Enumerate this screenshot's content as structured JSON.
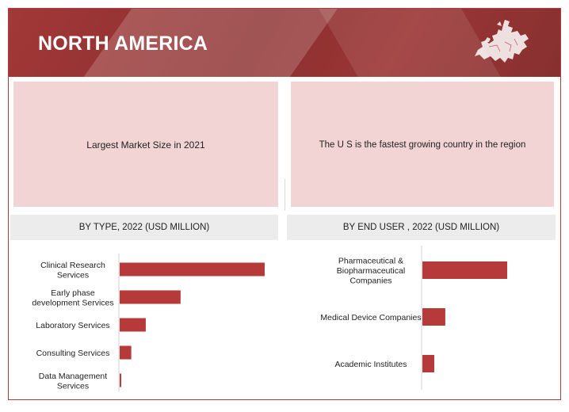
{
  "header": {
    "title": "NORTH AMERICA"
  },
  "panels": {
    "left_text": "Largest Market Size in 2021",
    "right_text": "The U S is the fastest growing country in the region"
  },
  "colors": {
    "bar": "#b73a3a",
    "header": "#943333",
    "panel": "#f2d4d4"
  },
  "icons": {
    "map": "europe-map-icon"
  },
  "chart_data": [
    {
      "type": "bar",
      "orientation": "horizontal",
      "title": "BY TYPE, 2022 (USD MILLION)",
      "categories": [
        [
          "Clinical Research",
          "Services"
        ],
        [
          "Early phase",
          "development Services"
        ],
        [
          "Laboratory Services"
        ],
        [
          "Consulting Services"
        ],
        [
          "Data Management",
          "Services"
        ]
      ],
      "values": [
        100,
        42,
        18,
        8,
        1
      ]
    },
    {
      "type": "bar",
      "orientation": "horizontal",
      "title": "BY END USER , 2022 (USD MILLION)",
      "categories": [
        [
          "Pharmaceutical &",
          "Biopharmaceutical",
          "Companies"
        ],
        [
          "Medical Device Companies"
        ],
        [
          "Academic Institutes"
        ]
      ],
      "values": [
        100,
        27,
        14
      ]
    }
  ]
}
